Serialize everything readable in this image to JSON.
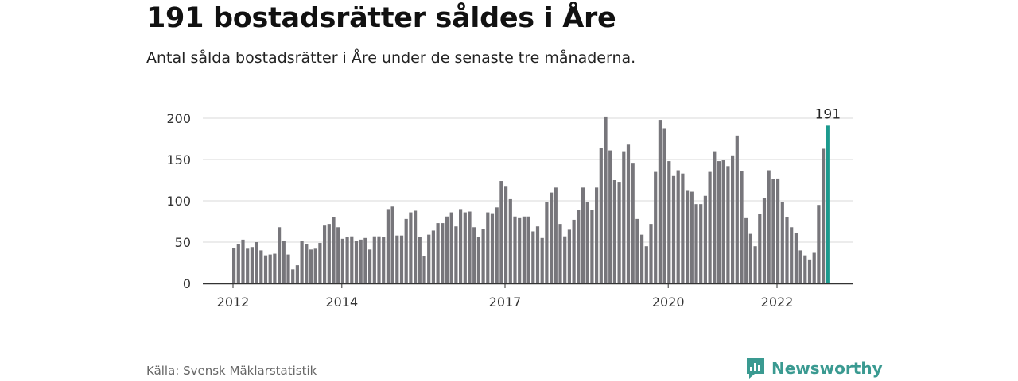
{
  "title": "191 bostadsrätter såldes i Åre",
  "subtitle": "Antal sålda bostadsrätter i Åre under de senaste tre månaderna.",
  "source": "Källa: Svensk Mäklarstatistik",
  "brand": "Newsworthy",
  "colors": {
    "bar": "#77767b",
    "highlight": "#1c9a8e",
    "grid": "#d9d9d9",
    "axis": "#333333"
  },
  "chart_data": {
    "type": "bar",
    "title": "191 bostadsrätter såldes i Åre",
    "subtitle": "Antal sålda bostadsrätter i Åre under de senaste tre månaderna.",
    "xlabel": "",
    "ylabel": "",
    "ylim": [
      0,
      210
    ],
    "yticks": [
      0,
      50,
      100,
      150,
      200
    ],
    "xticks": [
      "2012",
      "2014",
      "2017",
      "2020",
      "2022"
    ],
    "grid": true,
    "highlight_label": "191",
    "values": [
      43,
      48,
      53,
      42,
      44,
      50,
      40,
      34,
      35,
      36,
      68,
      51,
      35,
      17,
      22,
      51,
      48,
      41,
      42,
      49,
      70,
      72,
      80,
      68,
      54,
      56,
      57,
      51,
      53,
      55,
      41,
      57,
      57,
      56,
      90,
      93,
      58,
      58,
      78,
      86,
      88,
      56,
      33,
      59,
      64,
      73,
      73,
      81,
      86,
      69,
      90,
      86,
      87,
      68,
      56,
      66,
      86,
      85,
      92,
      124,
      118,
      102,
      81,
      79,
      81,
      81,
      63,
      69,
      55,
      99,
      110,
      116,
      72,
      57,
      65,
      77,
      89,
      116,
      99,
      89,
      116,
      164,
      202,
      161,
      125,
      123,
      160,
      168,
      146,
      78,
      59,
      45,
      72,
      135,
      198,
      188,
      148,
      130,
      137,
      133,
      113,
      111,
      96,
      96,
      106,
      135,
      160,
      148,
      149,
      142,
      155,
      179,
      136,
      79,
      60,
      45,
      84,
      103,
      137,
      126,
      127,
      99,
      80,
      68,
      61,
      40,
      34,
      29,
      37,
      95,
      163,
      191
    ]
  }
}
